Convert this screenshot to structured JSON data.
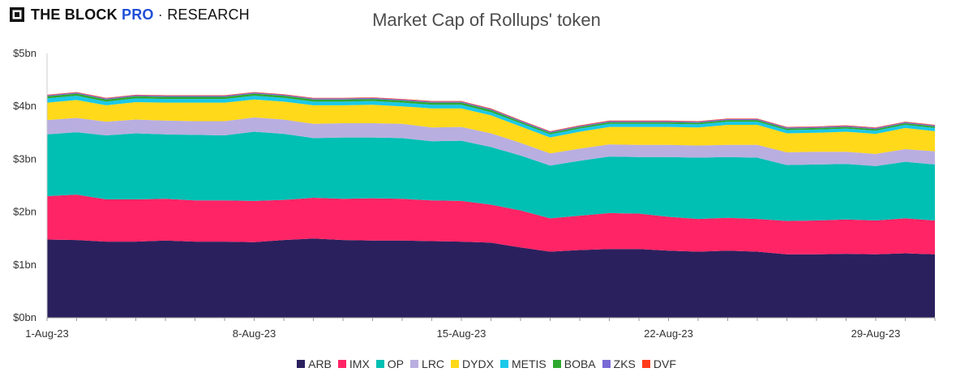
{
  "brand": {
    "main": "THE BLOCK",
    "pro": "PRO",
    "separator": " · ",
    "research": "RESEARCH"
  },
  "chart_data": {
    "type": "area",
    "stacked": true,
    "title": "Market Cap of Rollups' token",
    "xlabel": "",
    "ylabel": "",
    "ylim": [
      0,
      5
    ],
    "yticks": [
      "$0bn",
      "$1bn",
      "$2bn",
      "$3bn",
      "$4bn",
      "$5bn"
    ],
    "x": [
      "1-Aug-23",
      "2-Aug-23",
      "3-Aug-23",
      "4-Aug-23",
      "5-Aug-23",
      "6-Aug-23",
      "7-Aug-23",
      "8-Aug-23",
      "9-Aug-23",
      "10-Aug-23",
      "11-Aug-23",
      "12-Aug-23",
      "13-Aug-23",
      "14-Aug-23",
      "15-Aug-23",
      "16-Aug-23",
      "17-Aug-23",
      "18-Aug-23",
      "19-Aug-23",
      "20-Aug-23",
      "21-Aug-23",
      "22-Aug-23",
      "23-Aug-23",
      "24-Aug-23",
      "25-Aug-23",
      "26-Aug-23",
      "27-Aug-23",
      "28-Aug-23",
      "29-Aug-23",
      "30-Aug-23",
      "31-Aug-23"
    ],
    "xticks": [
      "1-Aug-23",
      "8-Aug-23",
      "15-Aug-23",
      "22-Aug-23",
      "29-Aug-23"
    ],
    "grid": false,
    "legend_position": "bottom",
    "series": [
      {
        "name": "ARB",
        "color": "#2b205e",
        "values": [
          1.48,
          1.47,
          1.44,
          1.44,
          1.46,
          1.44,
          1.44,
          1.43,
          1.47,
          1.5,
          1.47,
          1.46,
          1.46,
          1.45,
          1.44,
          1.42,
          1.33,
          1.25,
          1.28,
          1.3,
          1.3,
          1.27,
          1.25,
          1.27,
          1.25,
          1.2,
          1.2,
          1.21,
          1.2,
          1.22,
          1.2
        ]
      },
      {
        "name": "IMX",
        "color": "#ff2465",
        "values": [
          0.82,
          0.86,
          0.8,
          0.8,
          0.79,
          0.78,
          0.78,
          0.78,
          0.76,
          0.77,
          0.78,
          0.8,
          0.79,
          0.77,
          0.77,
          0.72,
          0.7,
          0.63,
          0.65,
          0.68,
          0.67,
          0.64,
          0.62,
          0.62,
          0.62,
          0.63,
          0.64,
          0.65,
          0.64,
          0.66,
          0.64
        ]
      },
      {
        "name": "OP",
        "color": "#00bfb3",
        "values": [
          1.17,
          1.18,
          1.21,
          1.25,
          1.22,
          1.24,
          1.23,
          1.31,
          1.25,
          1.13,
          1.16,
          1.15,
          1.15,
          1.12,
          1.14,
          1.09,
          1.04,
          1.0,
          1.04,
          1.07,
          1.07,
          1.13,
          1.16,
          1.15,
          1.16,
          1.06,
          1.06,
          1.05,
          1.03,
          1.07,
          1.06
        ]
      },
      {
        "name": "LRC",
        "color": "#b9aee0",
        "values": [
          0.27,
          0.27,
          0.26,
          0.26,
          0.26,
          0.26,
          0.27,
          0.27,
          0.27,
          0.27,
          0.27,
          0.27,
          0.27,
          0.26,
          0.26,
          0.26,
          0.24,
          0.23,
          0.23,
          0.23,
          0.23,
          0.23,
          0.23,
          0.23,
          0.24,
          0.24,
          0.24,
          0.23,
          0.23,
          0.24,
          0.25
        ]
      },
      {
        "name": "DYDX",
        "color": "#ffd91a",
        "values": [
          0.33,
          0.34,
          0.31,
          0.33,
          0.34,
          0.35,
          0.35,
          0.34,
          0.34,
          0.35,
          0.34,
          0.35,
          0.33,
          0.36,
          0.35,
          0.34,
          0.31,
          0.3,
          0.32,
          0.33,
          0.34,
          0.34,
          0.34,
          0.38,
          0.38,
          0.36,
          0.36,
          0.38,
          0.38,
          0.4,
          0.38
        ]
      },
      {
        "name": "METIS",
        "color": "#1ac8e8",
        "values": [
          0.08,
          0.08,
          0.07,
          0.07,
          0.07,
          0.07,
          0.07,
          0.07,
          0.07,
          0.07,
          0.07,
          0.07,
          0.07,
          0.07,
          0.07,
          0.06,
          0.06,
          0.06,
          0.06,
          0.06,
          0.06,
          0.06,
          0.06,
          0.06,
          0.06,
          0.06,
          0.06,
          0.06,
          0.06,
          0.06,
          0.06
        ]
      },
      {
        "name": "BOBA",
        "color": "#2ea82e",
        "values": [
          0.04,
          0.04,
          0.04,
          0.04,
          0.04,
          0.04,
          0.04,
          0.04,
          0.04,
          0.04,
          0.04,
          0.04,
          0.04,
          0.04,
          0.04,
          0.04,
          0.03,
          0.03,
          0.03,
          0.03,
          0.03,
          0.03,
          0.03,
          0.03,
          0.03,
          0.03,
          0.03,
          0.03,
          0.03,
          0.03,
          0.03
        ]
      },
      {
        "name": "ZKS",
        "color": "#7a6ad6",
        "values": [
          0.02,
          0.02,
          0.02,
          0.02,
          0.02,
          0.02,
          0.02,
          0.02,
          0.02,
          0.02,
          0.02,
          0.02,
          0.02,
          0.02,
          0.02,
          0.02,
          0.02,
          0.02,
          0.02,
          0.02,
          0.02,
          0.02,
          0.02,
          0.02,
          0.02,
          0.02,
          0.02,
          0.02,
          0.02,
          0.02,
          0.02
        ]
      },
      {
        "name": "DVF",
        "color": "#ff3b1a",
        "values": [
          0.01,
          0.01,
          0.01,
          0.01,
          0.01,
          0.01,
          0.01,
          0.01,
          0.01,
          0.01,
          0.01,
          0.01,
          0.01,
          0.01,
          0.01,
          0.01,
          0.01,
          0.01,
          0.01,
          0.01,
          0.01,
          0.01,
          0.01,
          0.01,
          0.01,
          0.01,
          0.01,
          0.01,
          0.01,
          0.01,
          0.01
        ]
      }
    ]
  }
}
